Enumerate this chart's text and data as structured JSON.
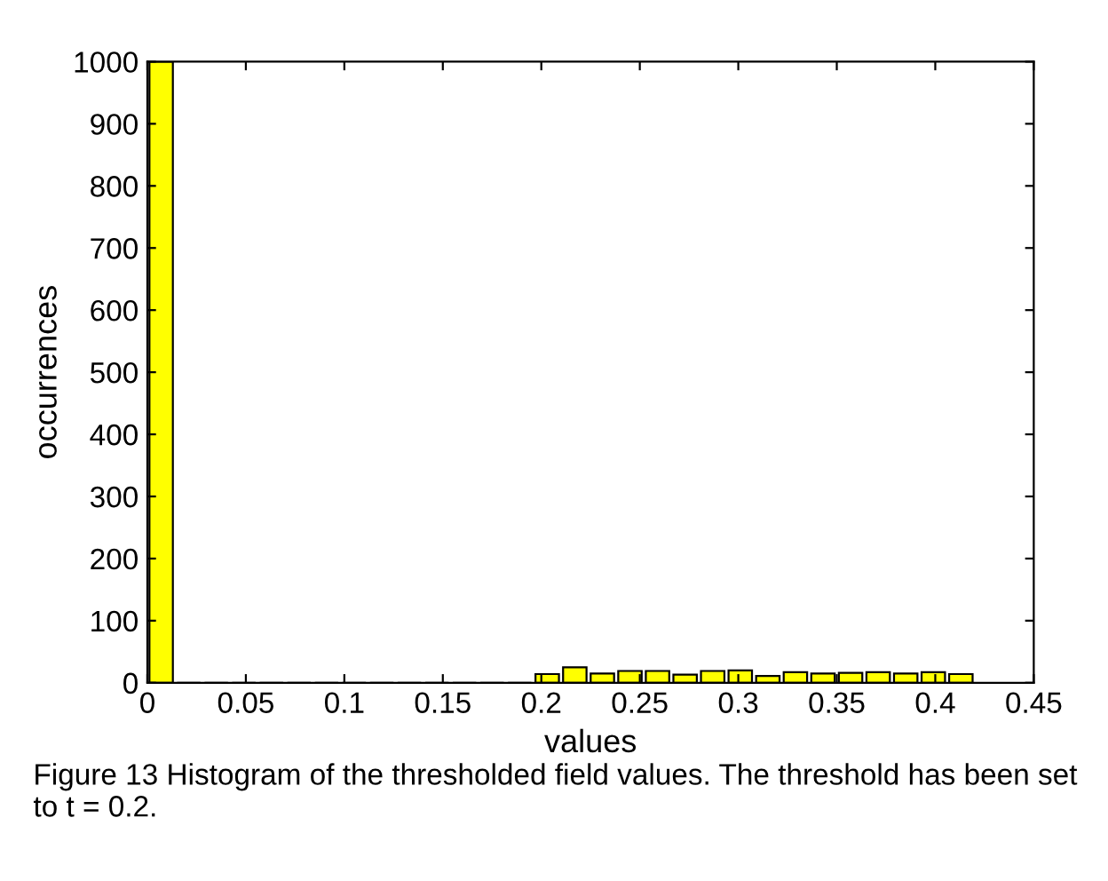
{
  "chart_data": {
    "type": "histogram",
    "bins": [
      0,
      0.014,
      0.028,
      0.042,
      0.056,
      0.07,
      0.084,
      0.098,
      0.112,
      0.126,
      0.14,
      0.154,
      0.168,
      0.182,
      0.196,
      0.21,
      0.224,
      0.238,
      0.252,
      0.266,
      0.28,
      0.294,
      0.308,
      0.322,
      0.336,
      0.35,
      0.364,
      0.378,
      0.392,
      0.406,
      0.42
    ],
    "values": [
      1000,
      0,
      0,
      0,
      0,
      0,
      0,
      0,
      0,
      0,
      0,
      0,
      0,
      0,
      14,
      25,
      15,
      19,
      19,
      13,
      19,
      20,
      11,
      17,
      15,
      16,
      17,
      15,
      17,
      14
    ],
    "color": "#ffff00",
    "xlabel": "values",
    "ylabel": "occurrences",
    "xlim": [
      0,
      0.45
    ],
    "xticks": [
      0,
      0.05,
      0.1,
      0.15,
      0.2,
      0.25,
      0.3,
      0.35,
      0.4,
      0.45
    ],
    "ylim": [
      0,
      1000
    ],
    "yticks": [
      0,
      100,
      200,
      300,
      400,
      500,
      600,
      700,
      800,
      900,
      1000
    ],
    "grid": false,
    "annotations": [
      "Figure 13 Histogram of the thresholded field values. The threshold has been set to t = 0.2."
    ]
  }
}
